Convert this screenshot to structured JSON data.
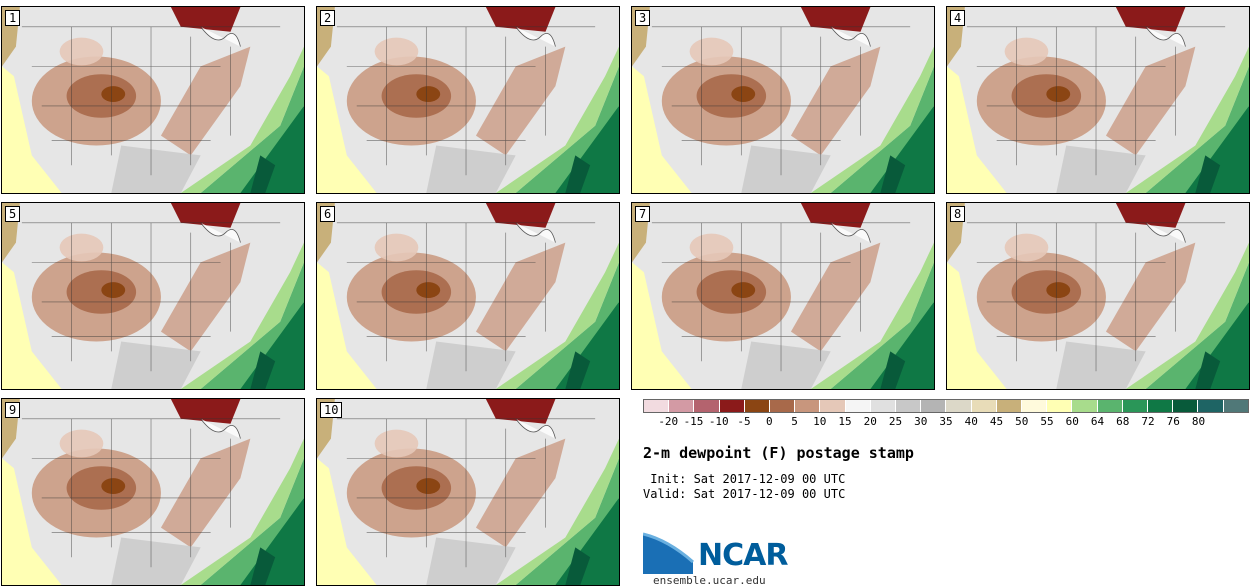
{
  "panels": [
    {
      "label": "1"
    },
    {
      "label": "2"
    },
    {
      "label": "3"
    },
    {
      "label": "4"
    },
    {
      "label": "5"
    },
    {
      "label": "6"
    },
    {
      "label": "7"
    },
    {
      "label": "8"
    },
    {
      "label": "9"
    },
    {
      "label": "10"
    }
  ],
  "legend": {
    "colors": [
      "#f2dbe0",
      "#d39aa4",
      "#b4636e",
      "#8b1a1a",
      "#8b4513",
      "#a8694a",
      "#c8967d",
      "#e5c8b8",
      "#f5f5f5",
      "#e0e0e0",
      "#c8c8c8",
      "#b4b4b4",
      "#dcd8c8",
      "#e8dcb8",
      "#c8b07a",
      "#fffadc",
      "#ffffb4",
      "#a8dc8c",
      "#5ab46e",
      "#2a9658",
      "#0f7845",
      "#085a3a",
      "#1e6464",
      "#507878"
    ],
    "ticks": [
      "-20",
      "-15",
      "-10",
      "-5",
      "0",
      "5",
      "10",
      "15",
      "20",
      "25",
      "30",
      "35",
      "40",
      "45",
      "50",
      "55",
      "60",
      "64",
      "68",
      "72",
      "76",
      "80"
    ]
  },
  "title": "2-m dewpoint (F) postage stamp",
  "init_line": " Init: Sat 2017-12-09 00 UTC",
  "valid_line": "Valid: Sat 2017-12-09 00 UTC",
  "logo": {
    "text": "NCAR",
    "site": "ensemble.ucar.edu"
  }
}
